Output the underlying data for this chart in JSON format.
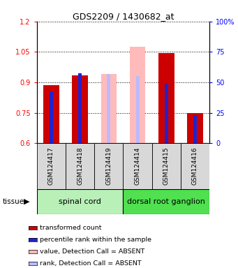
{
  "title": "GDS2209 / 1430682_at",
  "samples": [
    "GSM124417",
    "GSM124418",
    "GSM124419",
    "GSM124414",
    "GSM124415",
    "GSM124416"
  ],
  "transformed_count": [
    0.885,
    0.935,
    null,
    null,
    1.045,
    0.748
  ],
  "percentile_rank_value": [
    0.855,
    0.945,
    null,
    null,
    0.895,
    0.738
  ],
  "value_absent": [
    null,
    null,
    0.94,
    1.075,
    null,
    null
  ],
  "rank_absent_value": [
    null,
    null,
    0.94,
    0.93,
    null,
    null
  ],
  "absent_flags": [
    false,
    false,
    true,
    true,
    false,
    false
  ],
  "ylim_left": [
    0.6,
    1.2
  ],
  "ylim_right": [
    0,
    100
  ],
  "yticks_left": [
    0.6,
    0.75,
    0.9,
    1.05,
    1.2
  ],
  "yticks_right": [
    0,
    25,
    50,
    75,
    100
  ],
  "ytick_labels_left": [
    "0.6",
    "0.75",
    "0.9",
    "1.05",
    "1.2"
  ],
  "ytick_labels_right": [
    "0",
    "25",
    "50",
    "75",
    "100%"
  ],
  "tissue_groups": [
    {
      "label": "spinal cord",
      "samples": [
        0,
        1,
        2
      ],
      "color": "#b8f0b8"
    },
    {
      "label": "dorsal root ganglion",
      "samples": [
        3,
        4,
        5
      ],
      "color": "#50e050"
    }
  ],
  "wide_bar_width": 0.55,
  "narrow_bar_width": 0.12,
  "color_red": "#cc0000",
  "color_blue": "#2222cc",
  "color_pink": "#ffbbbb",
  "color_light_blue": "#bbbbff",
  "bg_color": "#d8d8d8",
  "note_absent_samples": "GSM124419 and GSM124414 are absent"
}
